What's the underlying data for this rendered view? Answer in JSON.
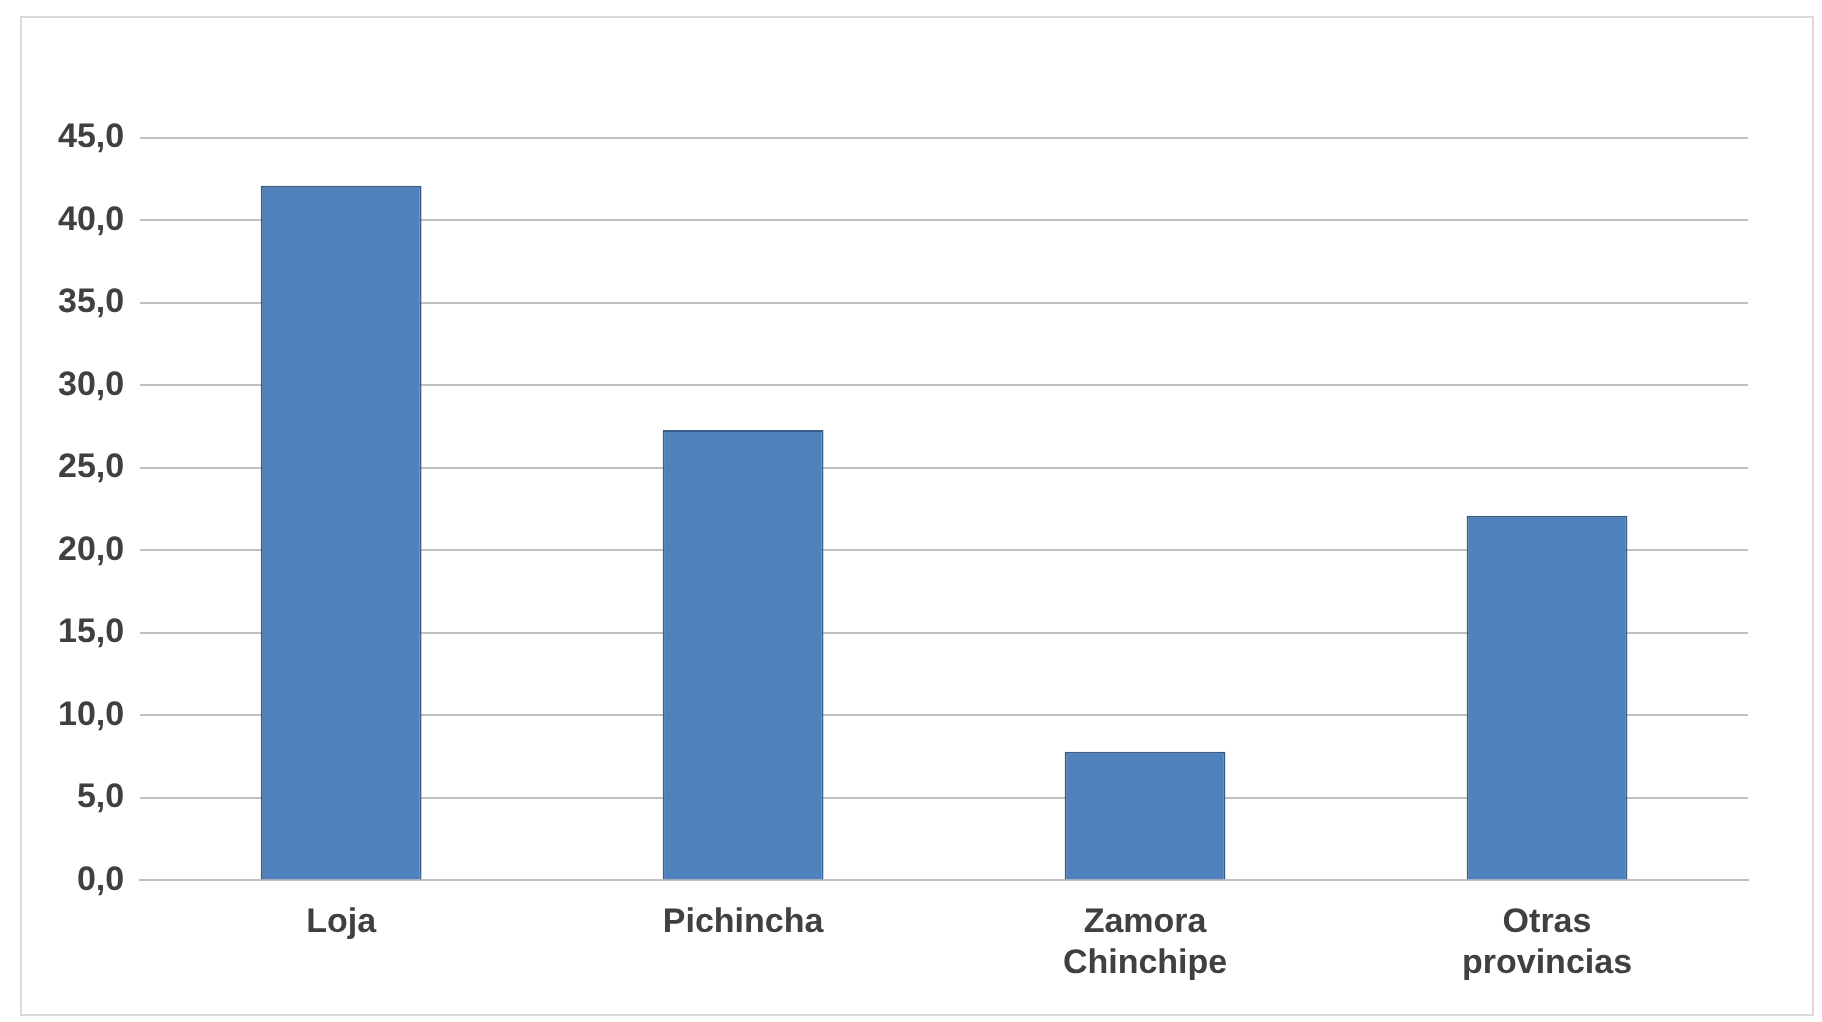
{
  "chart_data": {
    "type": "bar",
    "categories": [
      "Loja",
      "Pichincha",
      "Zamora Chinchipe",
      "Otras provincias"
    ],
    "values": [
      42.1,
      27.3,
      7.8,
      22.1
    ],
    "color": "#4f81bd",
    "ylim": [
      0,
      45
    ],
    "yticks": [
      {
        "value": 0,
        "label": "0,0"
      },
      {
        "value": 5,
        "label": "5,0"
      },
      {
        "value": 10,
        "label": "10,0"
      },
      {
        "value": 15,
        "label": "15,0"
      },
      {
        "value": 20,
        "label": "20,0"
      },
      {
        "value": 25,
        "label": "25,0"
      },
      {
        "value": 30,
        "label": "30,0"
      },
      {
        "value": 35,
        "label": "35,0"
      },
      {
        "value": 40,
        "label": "40,0"
      },
      {
        "value": 45,
        "label": "45,0"
      }
    ],
    "grid": "y",
    "legend": false
  }
}
